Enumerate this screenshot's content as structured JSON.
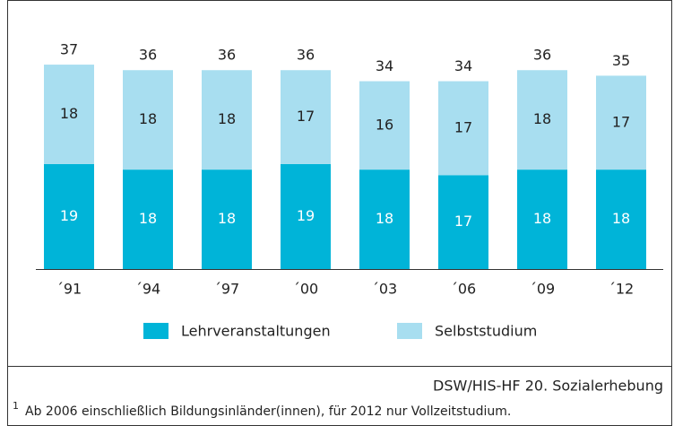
{
  "chart_data": {
    "type": "stacked_bar",
    "categories": [
      "´91",
      "´94",
      "´97",
      "´00",
      "´03",
      "´06",
      "´09",
      "´12"
    ],
    "series": [
      {
        "name": "Lehrveranstaltungen",
        "color": "#00b4d8",
        "values": [
          19,
          18,
          18,
          19,
          18,
          17,
          18,
          18
        ]
      },
      {
        "name": "Selbststudium",
        "color": "#a8def0",
        "values": [
          18,
          18,
          18,
          17,
          16,
          17,
          18,
          17
        ]
      }
    ],
    "totals": [
      37,
      36,
      36,
      36,
      34,
      34,
      36,
      35
    ],
    "source": "DSW/HIS-HF  20. Sozialerhebung",
    "footnote_marker": "1",
    "footnote": "Ab 2006 einschließlich Bildungsinländer(innen), für 2012 nur Vollzeitstudium."
  }
}
